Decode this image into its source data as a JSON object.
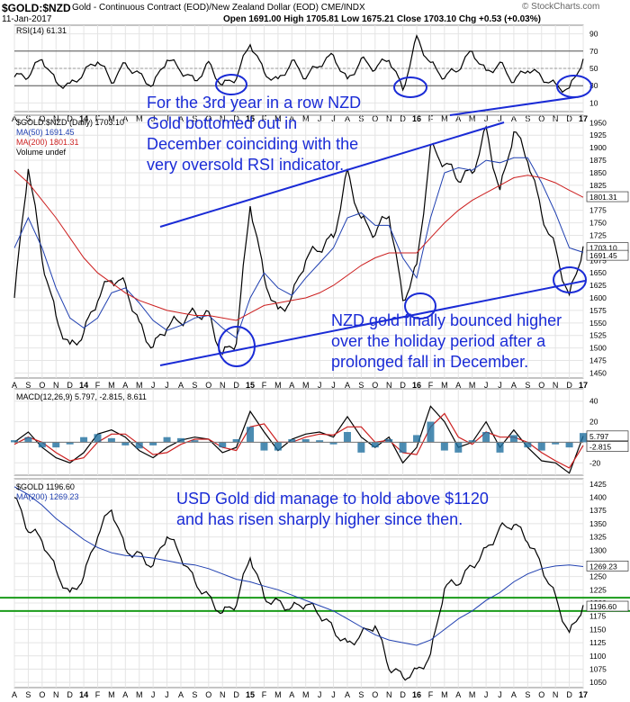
{
  "header": {
    "symbol": "$GOLD:$NZD",
    "description": "Gold - Continuous Contract (EOD)/New Zealand Dollar (EOD)  CME/INDX",
    "date": "11-Jan-2017",
    "ohlc": "Open 1691.00  High 1705.81  Low 1675.21  Close 1703.10  Chg +0.53 (+0.03%)",
    "copyright": "© StockCharts.com"
  },
  "colors": {
    "price": "#000000",
    "ma50": "#1f3fb0",
    "ma200": "#cc1f1f",
    "annotation": "#1a2bd6",
    "support": "#1a9b1a",
    "histogram": "#1f6f9f"
  },
  "chart_data": [
    {
      "type": "line",
      "title": "RSI(14) 61.31",
      "y_ticks": [
        10,
        30,
        50,
        70,
        90
      ],
      "reference_lines": [
        30,
        50,
        70
      ],
      "last_value_label": "61.31",
      "x_labels": [
        "A",
        "S",
        "O",
        "N",
        "D",
        "14",
        "F",
        "M",
        "A",
        "M",
        "J",
        "J",
        "A",
        "S",
        "O",
        "N",
        "D",
        "15",
        "F",
        "M",
        "A",
        "M",
        "J",
        "J",
        "A",
        "S",
        "O",
        "N",
        "D",
        "16",
        "F",
        "M",
        "A",
        "M",
        "J",
        "J",
        "A",
        "S",
        "O",
        "N",
        "D",
        "17"
      ],
      "series": [
        {
          "name": "RSI(14)",
          "values": [
            40,
            42,
            62,
            33,
            30,
            45,
            60,
            35,
            55,
            42,
            30,
            62,
            48,
            35,
            55,
            30,
            40,
            80,
            45,
            35,
            58,
            40,
            55,
            65,
            35,
            60,
            50,
            62,
            25,
            85,
            55,
            40,
            50,
            70,
            45,
            55,
            35,
            50,
            40,
            30,
            25,
            61
          ]
        }
      ]
    },
    {
      "type": "line",
      "title": "$GOLD:$NZD (Daily) 1703.10",
      "legend": [
        "MA(50) 1691.45",
        "MA(200) 1801.31",
        "Volume undef"
      ],
      "y_ticks": [
        1450,
        1475,
        1500,
        1525,
        1550,
        1575,
        1600,
        1625,
        1650,
        1675,
        1700,
        1725,
        1750,
        1775,
        1800,
        1825,
        1850,
        1875,
        1900,
        1925,
        1950
      ],
      "ylim": [
        1440,
        1965
      ],
      "price_labels": [
        "1801.31",
        "1703.10",
        "1691.45"
      ],
      "x_labels": [
        "A",
        "S",
        "O",
        "N",
        "D",
        "14",
        "F",
        "M",
        "A",
        "M",
        "J",
        "J",
        "A",
        "S",
        "O",
        "N",
        "D",
        "15",
        "F",
        "M",
        "A",
        "M",
        "J",
        "J",
        "A",
        "S",
        "O",
        "N",
        "D",
        "16",
        "F",
        "M",
        "A",
        "M",
        "J",
        "J",
        "A",
        "S",
        "O",
        "N",
        "D",
        "17"
      ],
      "series": [
        {
          "name": "$GOLD:$NZD",
          "values": [
            1600,
            1865,
            1680,
            1560,
            1500,
            1530,
            1600,
            1640,
            1625,
            1545,
            1500,
            1545,
            1555,
            1570,
            1565,
            1485,
            1515,
            1790,
            1640,
            1570,
            1600,
            1680,
            1700,
            1720,
            1850,
            1755,
            1730,
            1770,
            1595,
            1660,
            1900,
            1870,
            1840,
            1850,
            1935,
            1810,
            1935,
            1880,
            1770,
            1695,
            1600,
            1703
          ]
        },
        {
          "name": "MA(50)",
          "values": [
            1700,
            1760,
            1700,
            1620,
            1560,
            1540,
            1560,
            1610,
            1620,
            1590,
            1555,
            1535,
            1545,
            1560,
            1565,
            1540,
            1520,
            1600,
            1650,
            1620,
            1605,
            1640,
            1670,
            1700,
            1760,
            1770,
            1745,
            1745,
            1680,
            1640,
            1760,
            1850,
            1860,
            1855,
            1875,
            1870,
            1880,
            1880,
            1830,
            1770,
            1700,
            1691
          ]
        },
        {
          "name": "MA(200)",
          "values": [
            1855,
            1830,
            1795,
            1760,
            1720,
            1680,
            1650,
            1630,
            1610,
            1595,
            1585,
            1575,
            1570,
            1565,
            1565,
            1560,
            1555,
            1570,
            1585,
            1590,
            1595,
            1600,
            1610,
            1625,
            1645,
            1665,
            1680,
            1690,
            1690,
            1690,
            1720,
            1750,
            1775,
            1795,
            1810,
            1825,
            1840,
            1845,
            1840,
            1830,
            1815,
            1801
          ]
        }
      ]
    },
    {
      "type": "line",
      "title": "MACD(12,26,9) 5.797, -2.815, 8.611",
      "y_ticks": [
        -20,
        0,
        20,
        40
      ],
      "price_labels": [
        "5.797",
        "-2.815"
      ],
      "x_labels": [],
      "series": [
        {
          "name": "MACD",
          "values": [
            0,
            10,
            -5,
            -15,
            -20,
            -10,
            8,
            12,
            5,
            -8,
            -15,
            -5,
            2,
            5,
            3,
            -10,
            -5,
            30,
            10,
            -8,
            3,
            8,
            10,
            5,
            25,
            5,
            -5,
            5,
            -20,
            -5,
            35,
            20,
            -5,
            0,
            20,
            -5,
            12,
            -5,
            -18,
            -20,
            -30,
            6
          ]
        },
        {
          "name": "Signal",
          "values": [
            -2,
            5,
            0,
            -10,
            -18,
            -15,
            0,
            8,
            8,
            -2,
            -12,
            -10,
            -2,
            3,
            3,
            -5,
            -8,
            15,
            18,
            0,
            0,
            5,
            8,
            7,
            15,
            15,
            0,
            2,
            -10,
            -12,
            15,
            28,
            5,
            -2,
            10,
            5,
            5,
            0,
            -10,
            -18,
            -25,
            -3
          ]
        }
      ]
    },
    {
      "type": "line",
      "title": "$GOLD 1196.60",
      "legend": [
        "MA(200) 1269.23"
      ],
      "y_ticks": [
        1050,
        1075,
        1100,
        1125,
        1150,
        1175,
        1200,
        1225,
        1250,
        1275,
        1300,
        1325,
        1350,
        1375,
        1400,
        1425
      ],
      "ylim": [
        1040,
        1435
      ],
      "price_labels": [
        "1269.23",
        "1196.60"
      ],
      "support_lines": [
        1210,
        1185
      ],
      "x_labels": [
        "A",
        "S",
        "O",
        "N",
        "D",
        "14",
        "F",
        "M",
        "A",
        "M",
        "J",
        "J",
        "A",
        "S",
        "O",
        "N",
        "D",
        "15",
        "F",
        "M",
        "A",
        "M",
        "J",
        "J",
        "A",
        "S",
        "O",
        "N",
        "D",
        "16",
        "F",
        "M",
        "A",
        "M",
        "J",
        "J",
        "A",
        "S",
        "O",
        "N",
        "D",
        "17"
      ],
      "series": [
        {
          "name": "$GOLD",
          "values": [
            1400,
            1340,
            1320,
            1260,
            1215,
            1250,
            1330,
            1380,
            1300,
            1290,
            1270,
            1330,
            1290,
            1240,
            1210,
            1180,
            1200,
            1290,
            1210,
            1200,
            1190,
            1200,
            1180,
            1150,
            1120,
            1140,
            1160,
            1080,
            1060,
            1070,
            1100,
            1230,
            1240,
            1270,
            1300,
            1340,
            1350,
            1320,
            1270,
            1210,
            1140,
            1196
          ]
        },
        {
          "name": "MA(200)",
          "values": [
            1420,
            1405,
            1385,
            1360,
            1340,
            1320,
            1305,
            1295,
            1290,
            1288,
            1285,
            1280,
            1275,
            1272,
            1265,
            1255,
            1245,
            1240,
            1232,
            1225,
            1215,
            1205,
            1195,
            1185,
            1170,
            1155,
            1140,
            1130,
            1125,
            1120,
            1130,
            1150,
            1170,
            1185,
            1205,
            1220,
            1240,
            1255,
            1265,
            1270,
            1272,
            1269
          ]
        }
      ]
    }
  ],
  "annotations": {
    "rsi_note": [
      "For the 3rd year in a row NZD",
      "Gold bottomed out in",
      "December coinciding with the",
      "very oversold RSI indicator."
    ],
    "bounce_note": [
      "NZD gold finally bounced higher",
      "over the holiday period after a",
      "prolonged fall in December."
    ],
    "usd_note": [
      "USD Gold did manage to hold above $1120",
      "and has risen sharply higher since then."
    ]
  }
}
